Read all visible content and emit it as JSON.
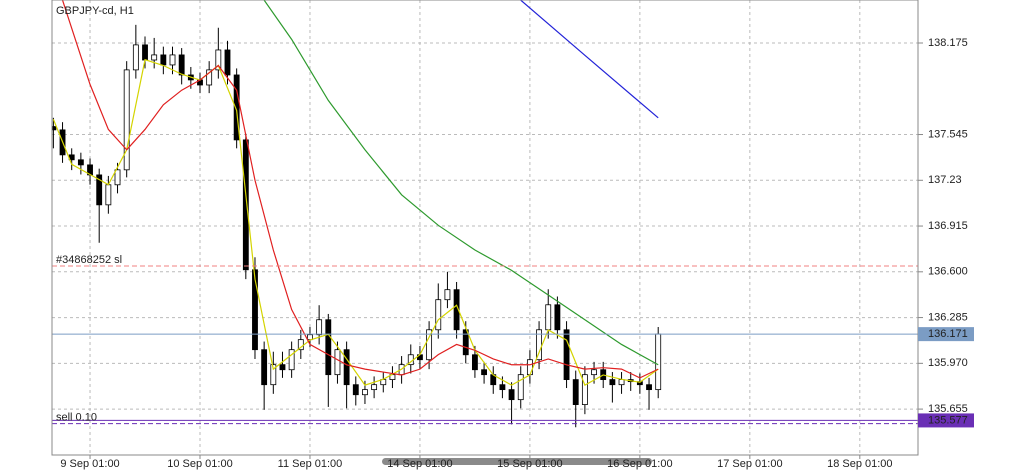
{
  "chart_data": {
    "type": "candlestick",
    "title": "GBPJPY-cd, H1",
    "xlim": [
      -8.3,
      180.7
    ],
    "xticks": [
      {
        "value": 0,
        "label": "9 Sep 01:00"
      },
      {
        "value": 24,
        "label": "10 Sep 01:00"
      },
      {
        "value": 48,
        "label": "11 Sep 01:00"
      },
      {
        "value": 72,
        "label": "14 Sep 01:00"
      },
      {
        "value": 96,
        "label": "15 Sep 01:00"
      },
      {
        "value": 120,
        "label": "16 Sep 01:00"
      },
      {
        "value": 144,
        "label": "17 Sep 01:00"
      },
      {
        "value": 168,
        "label": "18 Sep 01:00"
      }
    ],
    "ylim": [
      135.339,
      138.471
    ],
    "yticks": [
      138.175,
      137.545,
      137.23,
      136.915,
      {
        "value": 136.6,
        "label": "136.600"
      },
      136.285,
      {
        "value": 135.97,
        "label": "135.970"
      },
      135.655
    ],
    "grid": true,
    "x": [
      -8,
      -6,
      -4,
      -2,
      0,
      2,
      4,
      6,
      8,
      10,
      12,
      14,
      16,
      18,
      20,
      22,
      24,
      26,
      28,
      30,
      32,
      34,
      36,
      38,
      40,
      42,
      44,
      46,
      48,
      50,
      52,
      54,
      56,
      58,
      60,
      62,
      64,
      66,
      68,
      70,
      72,
      74,
      76,
      78,
      80,
      82,
      84,
      86,
      88,
      90,
      92,
      94,
      96,
      98,
      100,
      102,
      104,
      106,
      108,
      110,
      112,
      114,
      116,
      118,
      120,
      122,
      124
    ],
    "open": [
      137.6,
      137.577,
      137.405,
      137.371,
      137.336,
      137.267,
      137.061,
      137.199,
      137.302,
      137.99,
      138.162,
      138.058,
      138.093,
      138.024,
      138.093,
      137.955,
      137.921,
      137.886,
      137.99,
      138.127,
      137.955,
      137.508,
      136.614,
      136.064,
      135.823,
      135.961,
      135.926,
      136.064,
      136.133,
      136.167,
      136.27,
      135.892,
      136.064,
      135.823,
      135.754,
      135.789,
      135.823,
      135.858,
      135.892,
      135.961,
      136.029,
      135.995,
      136.201,
      136.408,
      136.477,
      136.201,
      136.029,
      135.926,
      135.892,
      135.823,
      135.789,
      135.72,
      135.892,
      135.995,
      136.201,
      136.373,
      136.201,
      135.858,
      135.686,
      135.892,
      135.926,
      135.858,
      135.823,
      135.858,
      135.844,
      135.823,
      135.789
    ],
    "high": [
      137.66,
      137.63,
      137.45,
      137.42,
      137.38,
      137.31,
      137.26,
      137.35,
      138.05,
      138.3,
      138.22,
      138.21,
      138.15,
      138.15,
      138.14,
      138.01,
      137.97,
      138.05,
      138.28,
      138.19,
      138.0,
      137.55,
      136.7,
      136.12,
      136.05,
      136.05,
      136.12,
      136.2,
      136.22,
      136.37,
      136.31,
      136.12,
      136.12,
      135.88,
      135.85,
      135.88,
      135.91,
      135.95,
      136.02,
      136.1,
      136.09,
      136.26,
      136.52,
      136.6,
      136.53,
      136.26,
      136.09,
      135.98,
      135.95,
      135.88,
      135.84,
      135.95,
      136.06,
      136.26,
      136.48,
      136.43,
      136.26,
      135.92,
      135.95,
      135.98,
      135.98,
      135.91,
      135.91,
      135.91,
      135.9,
      135.87,
      136.22
    ],
    "low": [
      137.45,
      137.35,
      137.3,
      137.27,
      137.2,
      136.8,
      137.0,
      137.14,
      137.25,
      137.93,
      138.0,
      138.0,
      137.96,
      137.96,
      137.89,
      137.86,
      137.83,
      137.83,
      137.93,
      137.89,
      137.45,
      136.55,
      136.0,
      135.65,
      135.76,
      135.87,
      135.87,
      136.0,
      136.08,
      136.1,
      135.67,
      135.83,
      135.66,
      135.68,
      135.69,
      135.73,
      135.77,
      135.8,
      135.83,
      135.9,
      135.93,
      135.93,
      136.14,
      136.35,
      136.14,
      135.97,
      135.87,
      135.83,
      135.76,
      135.73,
      135.55,
      135.66,
      135.83,
      135.93,
      136.14,
      136.14,
      135.8,
      135.53,
      135.62,
      135.83,
      135.8,
      135.7,
      135.76,
      135.78,
      135.76,
      135.65,
      135.73
    ],
    "close": [
      137.577,
      137.405,
      137.371,
      137.336,
      137.267,
      137.061,
      137.199,
      137.302,
      137.99,
      138.162,
      138.058,
      138.093,
      138.024,
      138.093,
      137.955,
      137.921,
      137.886,
      137.99,
      138.127,
      137.955,
      137.508,
      136.614,
      136.064,
      135.823,
      135.961,
      135.926,
      136.064,
      136.133,
      136.167,
      136.27,
      135.892,
      136.064,
      135.823,
      135.754,
      135.789,
      135.823,
      135.858,
      135.892,
      135.961,
      136.029,
      135.995,
      136.201,
      136.408,
      136.477,
      136.201,
      136.029,
      135.926,
      135.892,
      135.823,
      135.789,
      135.72,
      135.892,
      135.995,
      136.201,
      136.373,
      136.201,
      135.858,
      135.686,
      135.892,
      135.926,
      135.858,
      135.823,
      135.858,
      135.844,
      135.823,
      135.789,
      136.171
    ],
    "overlays": [
      {
        "color": "#d4d400",
        "x": [
          -8,
          -4,
          0,
          4,
          8,
          12,
          16,
          20,
          24,
          28,
          32,
          36,
          40,
          44,
          48,
          52,
          56,
          60,
          64,
          68,
          72,
          76,
          80,
          84,
          88,
          92,
          96,
          100,
          104,
          108,
          112,
          116,
          120,
          124
        ],
        "values": [
          137.65,
          137.34,
          137.27,
          137.2,
          137.44,
          138.06,
          138.02,
          137.96,
          137.92,
          138.02,
          137.71,
          136.55,
          135.93,
          136.03,
          136.13,
          136.17,
          136.0,
          135.82,
          135.86,
          135.93,
          136.03,
          136.27,
          136.37,
          136.06,
          135.89,
          135.82,
          135.89,
          136.2,
          136.13,
          135.82,
          135.89,
          135.86,
          135.84,
          135.93
        ]
      },
      {
        "color": "#e02020",
        "x": [
          -6,
          0,
          4,
          8,
          12,
          16,
          20,
          24,
          28,
          32,
          36,
          40,
          44,
          48,
          52,
          56,
          60,
          64,
          68,
          72,
          76,
          80,
          84,
          88,
          92,
          96,
          100,
          104,
          108,
          112,
          116,
          120,
          124
        ],
        "values": [
          138.47,
          137.89,
          137.58,
          137.44,
          137.58,
          137.75,
          137.85,
          137.92,
          138.02,
          137.85,
          137.23,
          136.75,
          136.34,
          136.1,
          136.03,
          135.96,
          135.93,
          135.91,
          135.89,
          135.93,
          136.03,
          136.1,
          136.06,
          136.0,
          135.96,
          135.96,
          136.0,
          135.96,
          135.93,
          135.94,
          135.93,
          135.87,
          135.93
        ]
      },
      {
        "color": "#2e9a2e",
        "x": [
          38,
          44,
          52,
          60,
          68,
          76,
          84,
          92,
          100,
          108,
          116,
          124
        ],
        "values": [
          138.47,
          138.2,
          137.78,
          137.44,
          137.13,
          136.92,
          136.75,
          136.61,
          136.44,
          136.27,
          136.1,
          135.96
        ]
      },
      {
        "color": "#2323d8",
        "x": [
          94,
          108,
          124
        ],
        "values": [
          138.47,
          138.09,
          137.66
        ]
      }
    ],
    "levels": [
      {
        "label": "#34868252 sl",
        "value": 136.64,
        "color": "#f08080",
        "style": "dashed"
      },
      {
        "value": 136.171,
        "color": "#7b9cc4",
        "style": "solid",
        "price_box": true
      },
      {
        "value": 135.577,
        "color": "#6a2fb5",
        "style": "solid",
        "price_box": true
      },
      {
        "label": "sell 0.10",
        "value": 135.555,
        "color": "#6a2fb5",
        "style": "dashed"
      }
    ]
  }
}
